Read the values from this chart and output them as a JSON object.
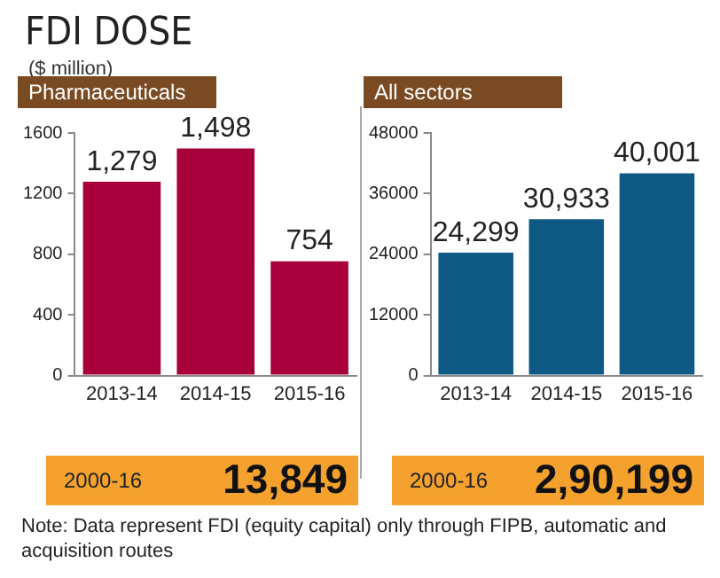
{
  "chart_data": [
    {
      "type": "bar",
      "title": "Pharmaceuticals",
      "ylabel": "($ million)",
      "categories": [
        "2013-14",
        "2014-15",
        "2015-16"
      ],
      "values": [
        1279,
        1498,
        754
      ],
      "value_labels": [
        "1,279",
        "1,498",
        "754"
      ],
      "color": "#a8003b",
      "ylim": [
        0,
        1600
      ],
      "yticks": [
        0,
        400,
        800,
        1200,
        1600
      ],
      "grid": false,
      "legend": false,
      "annotations": [
        "2000-16",
        "13,849",
        "FDI DOSE",
        "Note: Data represent FDI (equity capital) only through FIPB, automatic and acquisition routes"
      ]
    },
    {
      "type": "bar",
      "title": "All sectors",
      "categories": [
        "2013-14",
        "2014-15",
        "2015-16"
      ],
      "values": [
        24299,
        30933,
        40001
      ],
      "value_labels": [
        "24,299",
        "30,933",
        "40,001"
      ],
      "color": "#0e5a85",
      "ylim": [
        0,
        48000
      ],
      "yticks": [
        0,
        12000,
        24000,
        36000,
        48000
      ],
      "grid": false,
      "legend": false,
      "annotations": [
        "2000-16",
        "2,90,199"
      ]
    }
  ]
}
